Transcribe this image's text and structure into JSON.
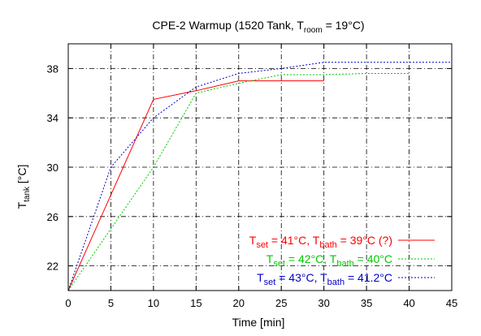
{
  "chart_data": {
    "type": "line",
    "title_parts": {
      "main": "CPE-2 Warmup (1520 Tank, T",
      "sub": "room",
      "end": " = 19°C)"
    },
    "xlabel": "Time [min]",
    "ylabel_parts": {
      "main": "T",
      "sub": "tank",
      "end": " [°C]"
    },
    "xlim": [
      0,
      45
    ],
    "ylim": [
      20,
      40
    ],
    "xticks": [
      0,
      5,
      10,
      15,
      20,
      25,
      30,
      35,
      40,
      45
    ],
    "yticks": [
      22,
      26,
      30,
      34,
      38
    ],
    "grid": true,
    "legend_position": "bottom-right",
    "series": [
      {
        "legend_parts": [
          "T",
          "set",
          " = 41°C, T",
          "bath",
          " = 39°C (?)"
        ],
        "color": "#ff0000",
        "dash": "solid",
        "x": [
          0,
          10,
          15,
          20,
          25,
          30
        ],
        "y": [
          20,
          35.5,
          36.2,
          37.0,
          37.0,
          37.0
        ]
      },
      {
        "legend_parts": [
          "T",
          "set",
          " = 42°C, T",
          "bath",
          " = 40°C"
        ],
        "color": "#00c800",
        "dash": "dotted",
        "x": [
          0,
          10,
          15,
          20,
          25,
          30,
          35,
          40
        ],
        "y": [
          20,
          30.0,
          36.0,
          36.8,
          37.5,
          37.5,
          37.6,
          37.6
        ]
      },
      {
        "legend_parts": [
          "T",
          "set",
          " = 43°C, T",
          "bath",
          " = 41.2°C"
        ],
        "color": "#0000c8",
        "dash": "dotted",
        "x": [
          0,
          5,
          10,
          15,
          20,
          25,
          30,
          35,
          40,
          45
        ],
        "y": [
          20,
          30.0,
          34.0,
          36.5,
          37.6,
          38.0,
          38.5,
          38.5,
          38.5,
          38.5
        ]
      }
    ]
  }
}
